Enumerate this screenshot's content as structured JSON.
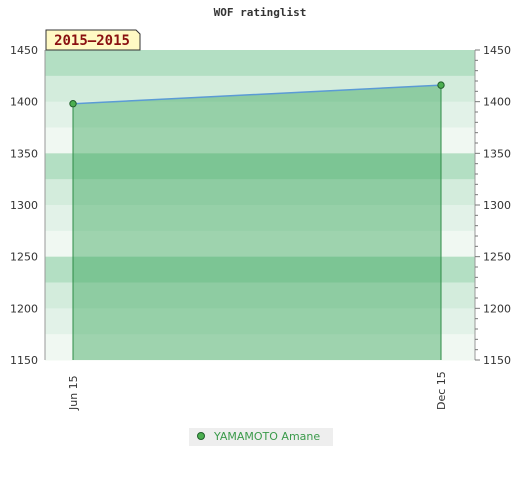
{
  "chart_data": {
    "type": "area",
    "title": "WOF ratinglist",
    "period_badge": "2015–2015",
    "categories": [
      "Jun 15",
      "Dec 15"
    ],
    "series": [
      {
        "name": "YAMAMOTO Amane",
        "values": [
          1398,
          1416
        ]
      }
    ],
    "ylim": [
      1150,
      1450
    ],
    "yticks": [
      1150,
      1200,
      1250,
      1300,
      1350,
      1400,
      1450
    ],
    "xlabel": "",
    "ylabel": "",
    "grid": true,
    "legend_position": "bottom",
    "colors": {
      "series_line": "#5b9bd5",
      "area_fill": "#3aa65a",
      "marker_fill": "#4caf50",
      "badge_fill": "#fff9c4",
      "legend_bg": "#eeeeee",
      "legend_text": "#3a9a4a"
    }
  }
}
